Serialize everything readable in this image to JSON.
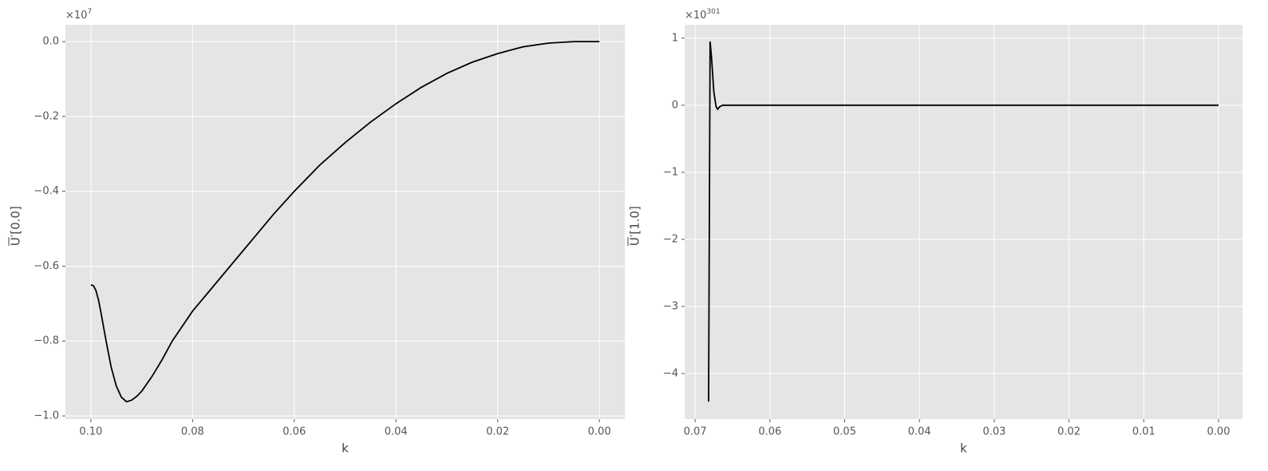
{
  "chart_data": [
    {
      "type": "line",
      "xlabel": "k",
      "ylabel": "U′[0.0]",
      "y_offset": {
        "base": "×10",
        "exponent": "7"
      },
      "x": [
        0.1,
        0.0995,
        0.099,
        0.0985,
        0.098,
        0.097,
        0.096,
        0.095,
        0.094,
        0.093,
        0.092,
        0.091,
        0.09,
        0.088,
        0.086,
        0.084,
        0.082,
        0.08,
        0.076,
        0.072,
        0.068,
        0.064,
        0.06,
        0.055,
        0.05,
        0.045,
        0.04,
        0.035,
        0.03,
        0.025,
        0.02,
        0.015,
        0.01,
        0.005,
        0
      ],
      "values": [
        -0.65,
        -0.652,
        -0.665,
        -0.69,
        -0.725,
        -0.8,
        -0.87,
        -0.92,
        -0.95,
        -0.962,
        -0.958,
        -0.948,
        -0.934,
        -0.895,
        -0.85,
        -0.8,
        -0.76,
        -0.72,
        -0.655,
        -0.59,
        -0.525,
        -0.46,
        -0.4,
        -0.33,
        -0.27,
        -0.215,
        -0.166,
        -0.122,
        -0.085,
        -0.055,
        -0.032,
        -0.014,
        -0.004,
        0,
        0
      ],
      "color": "#000000",
      "xlim": [
        0.105,
        -0.005
      ],
      "ylim": [
        -1.0085,
        0.045
      ],
      "xticks": [
        {
          "value": 0.1,
          "label": "0.10"
        },
        0.08,
        0.06,
        0.04,
        0.02,
        {
          "value": 0,
          "label": "0.00"
        }
      ],
      "yticks": [
        {
          "value": 0,
          "label": "0.0"
        },
        {
          "value": -0.2,
          "label": "−0.2"
        },
        {
          "value": -0.4,
          "label": "−0.4"
        },
        {
          "value": -0.6,
          "label": "−0.6"
        },
        {
          "value": -0.8,
          "label": "−0.8"
        },
        {
          "value": -1.0,
          "label": "−1.0"
        }
      ],
      "grid": true
    },
    {
      "type": "line",
      "xlabel": "k",
      "ylabel": "U′[1.0]",
      "y_offset": {
        "base": "×10",
        "exponent": "301"
      },
      "x": [
        0.0682,
        0.068,
        0.0678,
        0.0675,
        0.0672,
        0.067,
        0.0667,
        0.0663,
        0.066,
        0.05,
        0.03,
        0.01,
        0
      ],
      "values": [
        -4.42,
        0.95,
        0.7,
        0.2,
        -0.02,
        -0.06,
        -0.02,
        0,
        0,
        0,
        0,
        0,
        0
      ],
      "color": "#000000",
      "xlim": [
        0.0714,
        -0.0032
      ],
      "ylim": [
        -4.68,
        1.2
      ],
      "xticks": [
        0.07,
        0.06,
        0.05,
        0.04,
        0.03,
        0.02,
        0.01,
        {
          "value": 0,
          "label": "0.00"
        }
      ],
      "yticks": [
        1,
        0,
        {
          "value": -1,
          "label": "−1"
        },
        {
          "value": -2,
          "label": "−2"
        },
        {
          "value": -3,
          "label": "−3"
        },
        {
          "value": -4,
          "label": "−4"
        }
      ],
      "grid": true
    }
  ]
}
